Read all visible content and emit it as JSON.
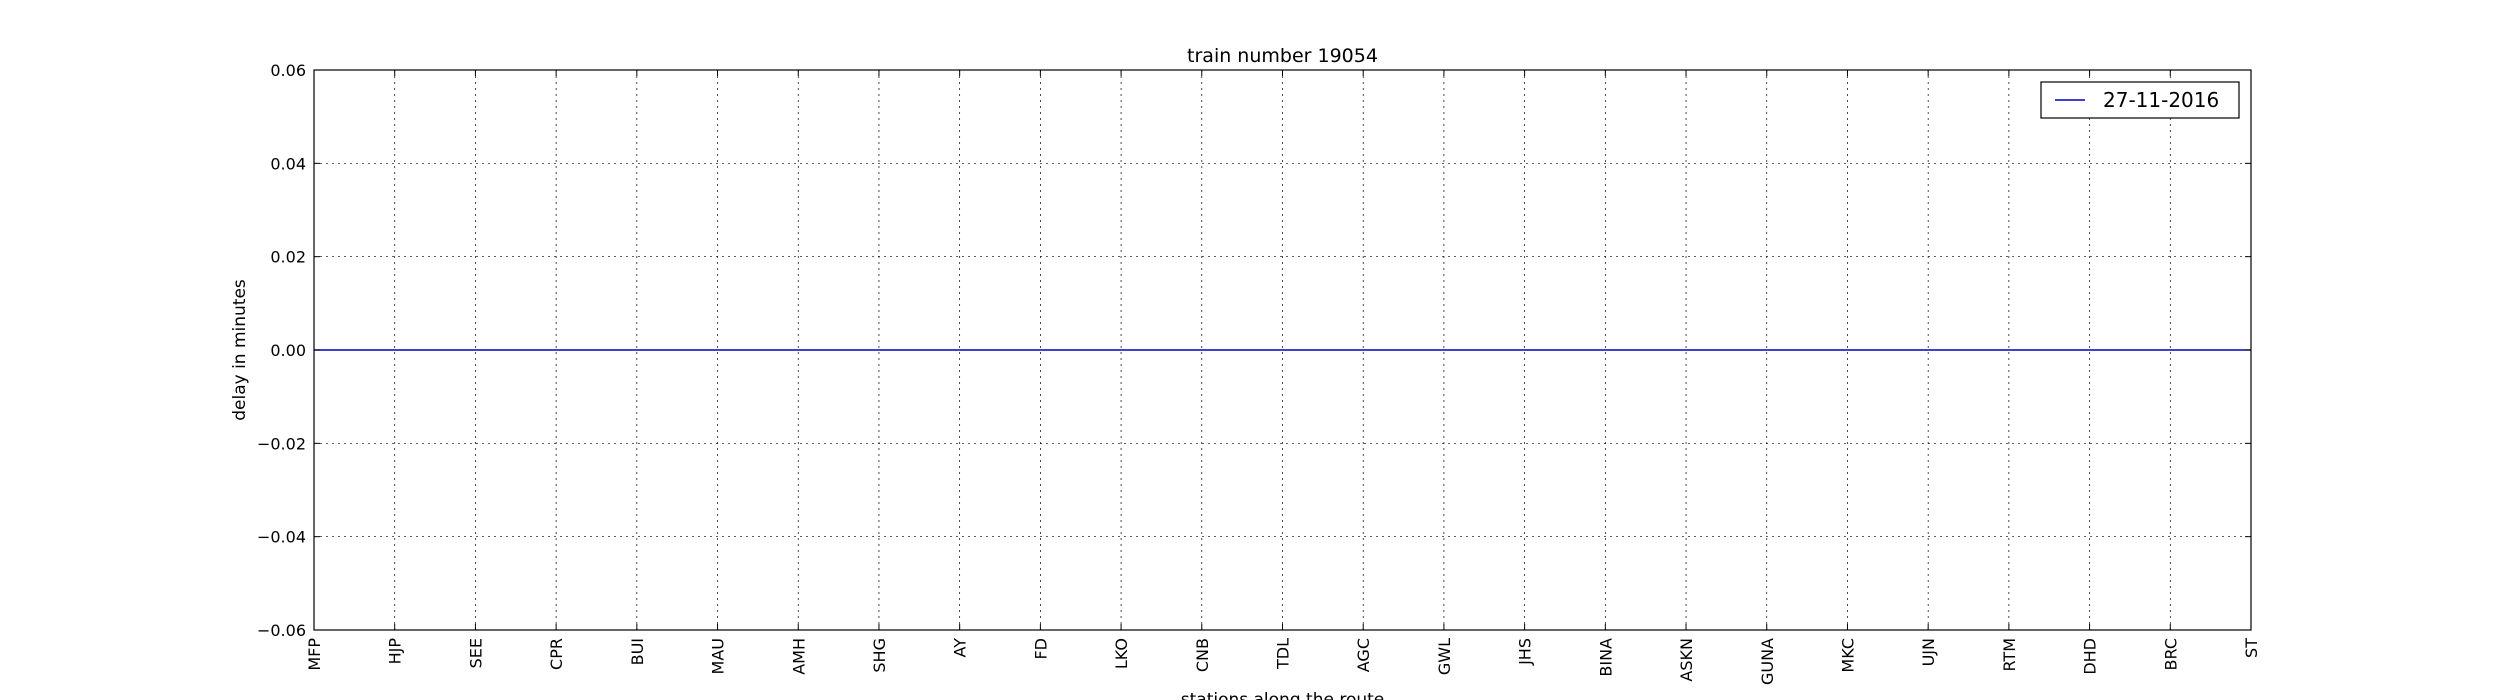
{
  "chart_data": {
    "type": "line",
    "title": "train number 19054",
    "xlabel": "stations along the route",
    "ylabel": "delay in minutes",
    "categories": [
      "MFP",
      "HJP",
      "SEE",
      "CPR",
      "BUI",
      "MAU",
      "AMH",
      "SHG",
      "AY",
      "FD",
      "LKO",
      "CNB",
      "TDL",
      "AGC",
      "GWL",
      "JHS",
      "BINA",
      "ASKN",
      "GUNA",
      "MKC",
      "UJN",
      "RTM",
      "DHD",
      "BRC",
      "ST"
    ],
    "ylim": [
      -0.06,
      0.06
    ],
    "yticks": [
      "0.06",
      "0.04",
      "0.02",
      "0.00",
      "−0.02",
      "−0.04",
      "−0.06"
    ],
    "grid": true,
    "legend_position": "top-right",
    "series": [
      {
        "name": "27-11-2016",
        "color": "#0000bf",
        "values": [
          0,
          0,
          0,
          0,
          0,
          0,
          0,
          0,
          0,
          0,
          0,
          0,
          0,
          0,
          0,
          0,
          0,
          0,
          0,
          0,
          0,
          0,
          0,
          0,
          0
        ]
      }
    ]
  }
}
